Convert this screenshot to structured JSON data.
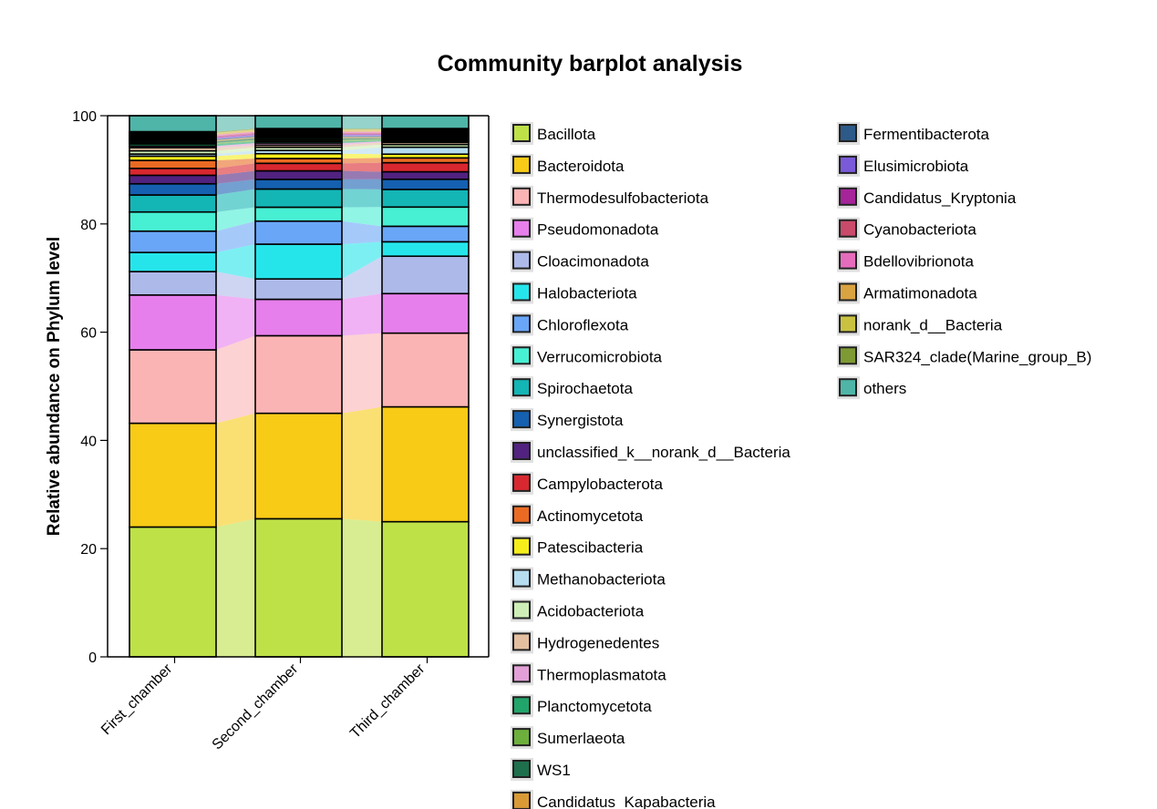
{
  "chart_data": {
    "type": "bar",
    "stacked": true,
    "title": "Community barplot analysis",
    "xlabel": "",
    "ylabel": "Relative abundance on Phylum level",
    "ylim": [
      0,
      100
    ],
    "yticks": [
      0,
      20,
      40,
      60,
      80,
      100
    ],
    "grid": false,
    "legend_position": "right",
    "categories": [
      "First_chamber",
      "Second_chamber",
      "Third_chamber"
    ],
    "series": [
      {
        "name": "Bacillota",
        "color": "#bee148",
        "values": [
          24.4,
          25.8,
          25.3
        ]
      },
      {
        "name": "Bacteroidota",
        "color": "#f7cb16",
        "values": [
          19.5,
          19.7,
          21.5
        ]
      },
      {
        "name": "Thermodesulfobacteriota",
        "color": "#fbb4b4",
        "values": [
          13.8,
          14.5,
          13.8
        ]
      },
      {
        "name": "Pseudomonadota",
        "color": "#e67fec",
        "values": [
          10.3,
          6.8,
          7.4
        ]
      },
      {
        "name": "Cloacimonadota",
        "color": "#adb9e9",
        "values": [
          4.4,
          3.8,
          7.0
        ]
      },
      {
        "name": "Halobacteriota",
        "color": "#25e5eb",
        "values": [
          3.6,
          6.5,
          2.7
        ]
      },
      {
        "name": "Chloroflexota",
        "color": "#69a6f7",
        "values": [
          4.0,
          4.3,
          2.9
        ]
      },
      {
        "name": "Verrucomicrobiota",
        "color": "#47efd3",
        "values": [
          3.6,
          2.6,
          3.6
        ]
      },
      {
        "name": "Spirochaetota",
        "color": "#14b5b5",
        "values": [
          3.2,
          3.4,
          3.3
        ]
      },
      {
        "name": "Synergistota",
        "color": "#1560b0",
        "values": [
          2.1,
          1.8,
          1.9
        ]
      },
      {
        "name": "unclassified_k__norank_d__Bacteria",
        "color": "#51227f",
        "values": [
          1.6,
          1.6,
          1.4
        ]
      },
      {
        "name": "Campylobacterota",
        "color": "#d9272f",
        "values": [
          1.3,
          1.4,
          1.7
        ]
      },
      {
        "name": "Actinomycetota",
        "color": "#ea6a23",
        "values": [
          1.5,
          0.9,
          0.9
        ]
      },
      {
        "name": "Patescibacteria",
        "color": "#f5ee1a",
        "values": [
          0.8,
          0.9,
          0.7
        ]
      },
      {
        "name": "Methanobacteriota",
        "color": "#b5dcef",
        "values": [
          0.4,
          0.6,
          1.3
        ]
      },
      {
        "name": "Acidobacteriota",
        "color": "#cdeeb6",
        "values": [
          0.6,
          0.6,
          0.5
        ]
      },
      {
        "name": "Hydrogenedentes",
        "color": "#e3bfa0",
        "values": [
          0.6,
          0.4,
          0.4
        ]
      },
      {
        "name": "Thermoplasmatota",
        "color": "#e2a0d6",
        "values": [
          0.3,
          0.4,
          0.2
        ]
      },
      {
        "name": "Planctomycetota",
        "color": "#21a56b",
        "values": [
          0.4,
          0.3,
          0.2
        ]
      },
      {
        "name": "Sumerlaeota",
        "color": "#6daf3c",
        "values": [
          0.2,
          0.3,
          0.2
        ]
      },
      {
        "name": "WS1",
        "color": "#1e6f4c",
        "values": [
          0.3,
          0.3,
          0.2
        ]
      },
      {
        "name": "Candidatus_Kapabacteria",
        "color": "#d99a36",
        "values": [
          0.2,
          0.2,
          0.2
        ]
      },
      {
        "name": "Fermentibacterota",
        "color": "#2d5a88",
        "values": [
          0.2,
          0.2,
          0.2
        ]
      },
      {
        "name": "Elusimicrobiota",
        "color": "#7a5ad8",
        "values": [
          0.2,
          0.2,
          0.2
        ]
      },
      {
        "name": "Candidatus_Kryptonia",
        "color": "#a5249a",
        "values": [
          0.2,
          0.2,
          0.2
        ]
      },
      {
        "name": "Cyanobacteriota",
        "color": "#c94a6a",
        "values": [
          0.2,
          0.2,
          0.2
        ]
      },
      {
        "name": "Bdellovibrionota",
        "color": "#e56cbc",
        "values": [
          0.2,
          0.2,
          0.2
        ]
      },
      {
        "name": "Armatimonadota",
        "color": "#d9a341",
        "values": [
          0.2,
          0.2,
          0.2
        ]
      },
      {
        "name": "norank_d__Bacteria",
        "color": "#c9c241",
        "values": [
          0.2,
          0.2,
          0.2
        ]
      },
      {
        "name": "SAR324_clade(Marine_group_B)",
        "color": "#7e9a33",
        "values": [
          0.2,
          0.2,
          0.2
        ]
      },
      {
        "name": "others",
        "color": "#4fb5a8",
        "values": [
          3.0,
          2.4,
          2.4
        ]
      }
    ]
  }
}
